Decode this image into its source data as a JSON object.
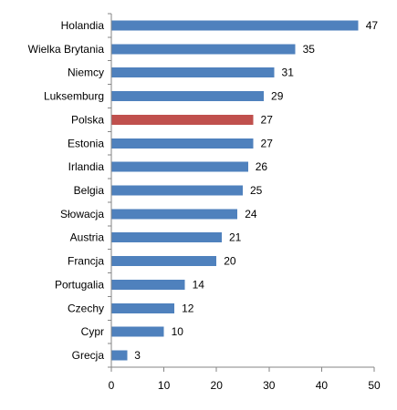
{
  "chart_data": {
    "type": "bar",
    "orientation": "horizontal",
    "categories": [
      "Holandia",
      "Wielka Brytania",
      "Niemcy",
      "Luksemburg",
      "Polska",
      "Estonia",
      "Irlandia",
      "Belgia",
      "Słowacja",
      "Austria",
      "Francja",
      "Portugalia",
      "Czechy",
      "Cypr",
      "Grecja"
    ],
    "values": [
      47,
      35,
      31,
      29,
      27,
      27,
      26,
      25,
      24,
      21,
      20,
      14,
      12,
      10,
      3
    ],
    "highlight_category": "Polska",
    "xlim": [
      0,
      50
    ],
    "xticks": [
      0,
      10,
      20,
      30,
      40,
      50
    ],
    "data_labels": true,
    "grid": false,
    "legend": "none",
    "title": "",
    "xlabel": "",
    "ylabel": "",
    "colors": {
      "bar": "#4F81BD",
      "highlight": "#C0504D",
      "axis": "#868686",
      "text": "#000000"
    }
  }
}
